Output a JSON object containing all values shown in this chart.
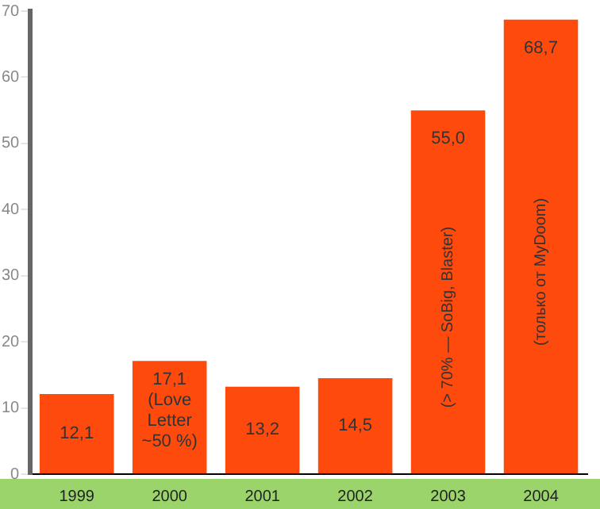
{
  "chart_data": {
    "type": "bar",
    "categories": [
      "1999",
      "2000",
      "2001",
      "2002",
      "2003",
      "2004"
    ],
    "values": [
      12.1,
      17.1,
      13.2,
      14.5,
      55.0,
      68.7
    ],
    "color": "#ff4a0e",
    "value_labels": [
      "12,1",
      "17,1 (Love Letter ~50 %)",
      "13,2",
      "14,5",
      "55,0 (> 70% — SoBig, Blaster)",
      "68,7 (только от MyDoom)"
    ],
    "ylim": [
      0,
      70
    ],
    "yticks": [
      0,
      10,
      20,
      30,
      40,
      50,
      60,
      70
    ],
    "grid": false,
    "legend": false
  }
}
